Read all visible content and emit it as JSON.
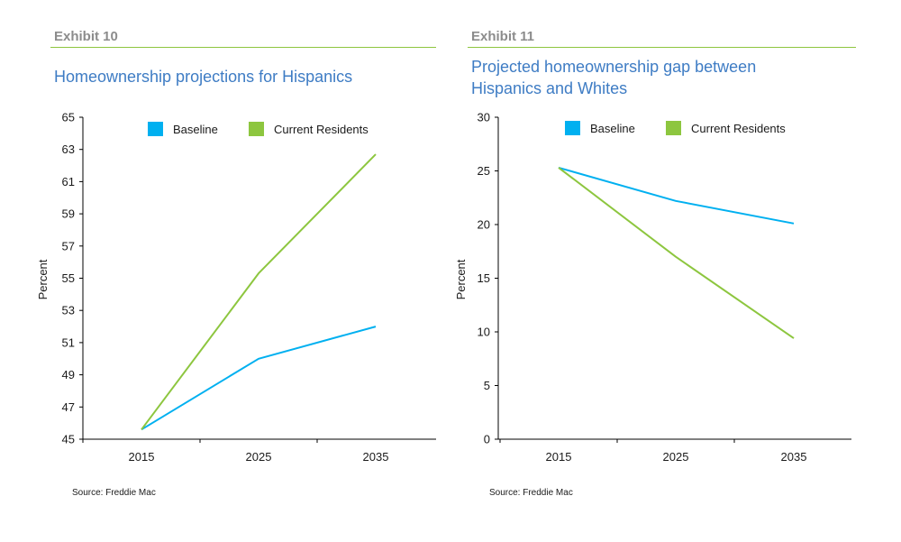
{
  "colors": {
    "baseline": "#00b0f0",
    "current": "#8dc63f",
    "rule": "#8dc63f"
  },
  "chart_data": [
    {
      "type": "line",
      "exhibit": "Exhibit 10",
      "title": [
        "Homeownership projections for Hispanics"
      ],
      "xlabel": "",
      "ylabel": "Percent",
      "categories": [
        "2015",
        "2025",
        "2035"
      ],
      "ylim": [
        45,
        65
      ],
      "yticks": [
        45,
        47,
        49,
        51,
        53,
        55,
        57,
        59,
        61,
        63,
        65
      ],
      "series": [
        {
          "name": "Baseline",
          "color": "#00b0f0",
          "values": [
            45.6,
            50.0,
            52.0
          ]
        },
        {
          "name": "Current Residents",
          "color": "#8dc63f",
          "values": [
            45.6,
            55.3,
            62.7
          ]
        }
      ],
      "source": "Source: Freddie Mac"
    },
    {
      "type": "line",
      "exhibit": "Exhibit 11",
      "title": [
        "Projected homeownership gap between",
        "Hispanics and Whites"
      ],
      "xlabel": "",
      "ylabel": "Percent",
      "categories": [
        "2015",
        "2025",
        "2035"
      ],
      "ylim": [
        0,
        30
      ],
      "yticks": [
        0,
        5,
        10,
        15,
        20,
        25,
        30
      ],
      "series": [
        {
          "name": "Baseline",
          "color": "#00b0f0",
          "values": [
            25.3,
            22.2,
            20.1
          ]
        },
        {
          "name": "Current Residents",
          "color": "#8dc63f",
          "values": [
            25.3,
            17.0,
            9.4
          ]
        }
      ],
      "source": "Source: Freddie Mac"
    }
  ]
}
